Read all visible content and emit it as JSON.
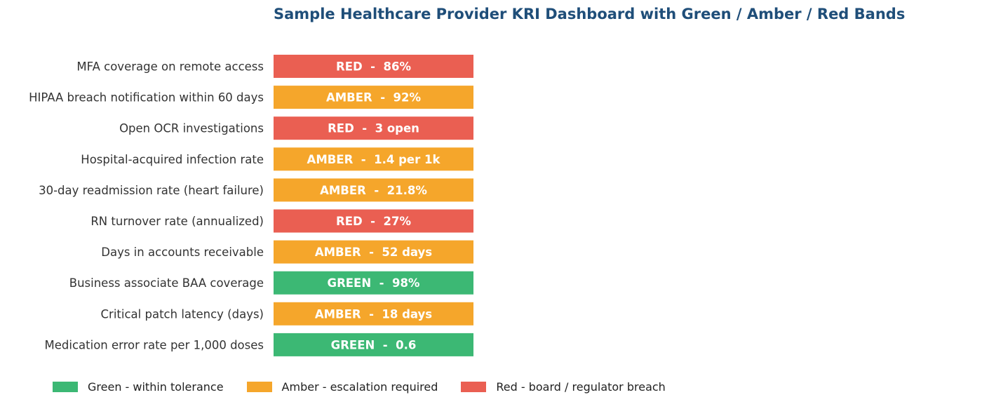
{
  "title": "Sample Healthcare Provider KRI Dashboard with Green / Amber / Red Bands",
  "colors": {
    "GREEN": "#3cb874",
    "AMBER": "#f5a62b",
    "RED": "#ea5f52",
    "label_text": "#ffffff",
    "title": "#1f4e79"
  },
  "chart_data": {
    "type": "bar",
    "orientation": "horizontal",
    "title": "Sample Healthcare Provider KRI Dashboard with Green / Amber / Red Bands",
    "categories": [
      "MFA coverage on remote access",
      "HIPAA breach notification within 60 days",
      "Open OCR investigations",
      "Hospital-acquired infection rate",
      "30-day readmission rate (heart failure)",
      "RN turnover rate (annualized)",
      "Days in accounts receivable",
      "Business associate BAA coverage",
      "Critical patch latency (days)",
      "Medication error rate per 1,000 doses"
    ],
    "status": [
      "RED",
      "AMBER",
      "RED",
      "AMBER",
      "AMBER",
      "RED",
      "AMBER",
      "GREEN",
      "AMBER",
      "GREEN"
    ],
    "labels": [
      "RED  -  86%",
      "AMBER  -  92%",
      "RED  -  3 open",
      "AMBER  -  1.4 per 1k",
      "AMBER  -  21.8%",
      "RED  -  27%",
      "AMBER  -  52 days",
      "GREEN  -  98%",
      "AMBER  -  18 days",
      "GREEN  -  0.6"
    ],
    "values": [
      1,
      1,
      1,
      1,
      1,
      1,
      1,
      1,
      1,
      1
    ],
    "legend": {
      "placement": "bottom",
      "entries": [
        {
          "label": "Green - within tolerance",
          "color": "#3cb874"
        },
        {
          "label": "Amber - escalation required",
          "color": "#f5a62b"
        },
        {
          "label": "Red - board / regulator breach",
          "color": "#ea5f52"
        }
      ]
    },
    "grid": false
  }
}
